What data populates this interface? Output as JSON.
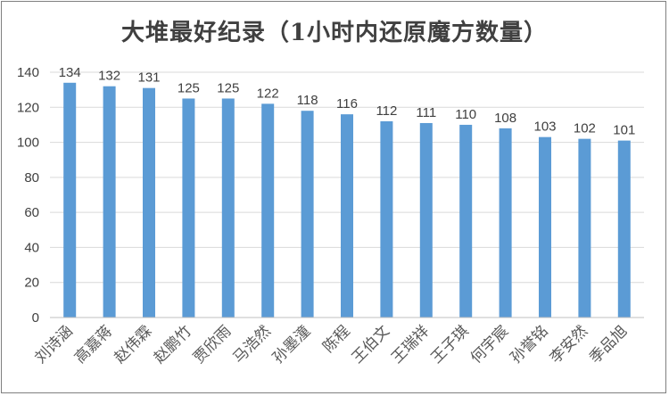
{
  "chart_data": {
    "type": "bar",
    "title": "大堆最好纪录（1小时内还原魔方数量）",
    "xlabel": "",
    "ylabel": "",
    "categories": [
      "刘诗涵",
      "高嘉蒋",
      "赵伟霖",
      "赵鹏竹",
      "贾欣雨",
      "马浩然",
      "孙墨潼",
      "陈程",
      "王伯文",
      "王瑞祥",
      "王子琪",
      "何宇宸",
      "孙誉铭",
      "李安然",
      "季品旭"
    ],
    "values": [
      134,
      132,
      131,
      125,
      125,
      122,
      118,
      116,
      112,
      111,
      110,
      108,
      103,
      102,
      101
    ],
    "ylim": [
      0,
      140
    ],
    "yticks": [
      0,
      20,
      40,
      60,
      80,
      100,
      120,
      140
    ],
    "grid": true,
    "legend": "none",
    "bar_color": "#5b9bd5",
    "grid_color": "#d9d9d9"
  }
}
